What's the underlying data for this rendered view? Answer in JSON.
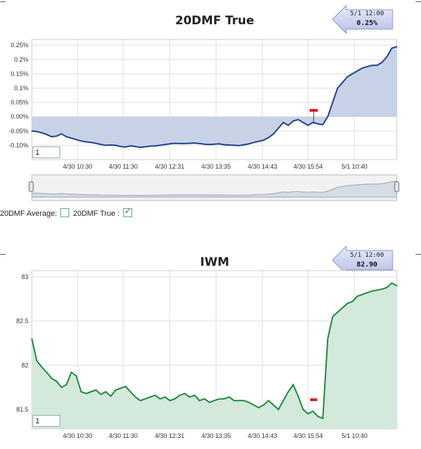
{
  "chart_data": [
    {
      "type": "area",
      "title": "20DMF True",
      "xlabel": "",
      "ylabel": "",
      "ylim": [
        -0.15,
        0.27
      ],
      "yticks": [
        "0.25%",
        "0.2%",
        "0.15%",
        "0.1%",
        "0.05%",
        "0.00%",
        "-0.05%",
        "-0.10%"
      ],
      "ytick_values": [
        0.25,
        0.2,
        0.15,
        0.1,
        0.05,
        0.0,
        -0.05,
        -0.1
      ],
      "xticks": [
        "4/30 10:30",
        "4/30 11:30",
        "4/30 12:31",
        "4/30 13:35",
        "4/30 14:43",
        "4/30 15:54",
        "5/1 10:40"
      ],
      "grid": true,
      "callout": {
        "date": "5/1 12:00",
        "value": "0.25%"
      },
      "input_value": "1",
      "series": [
        {
          "color": "#1f3f8f",
          "fill": "#c8d2e6",
          "values": [
            -0.05,
            -0.052,
            -0.056,
            -0.062,
            -0.07,
            -0.068,
            -0.06,
            -0.07,
            -0.075,
            -0.08,
            -0.085,
            -0.088,
            -0.09,
            -0.093,
            -0.097,
            -0.1,
            -0.099,
            -0.1,
            -0.104,
            -0.106,
            -0.102,
            -0.104,
            -0.107,
            -0.105,
            -0.103,
            -0.102,
            -0.1,
            -0.097,
            -0.095,
            -0.093,
            -0.094,
            -0.094,
            -0.093,
            -0.092,
            -0.094,
            -0.096,
            -0.097,
            -0.096,
            -0.095,
            -0.098,
            -0.099,
            -0.1,
            -0.101,
            -0.098,
            -0.095,
            -0.09,
            -0.086,
            -0.082,
            -0.073,
            -0.06,
            -0.04,
            -0.02,
            -0.03,
            -0.015,
            -0.01,
            -0.02,
            -0.03,
            -0.02,
            -0.025,
            -0.028,
            0.0,
            0.05,
            0.1,
            0.12,
            0.14,
            0.15,
            0.16,
            0.17,
            0.175,
            0.18,
            0.18,
            0.19,
            0.21,
            0.24,
            0.245
          ]
        }
      ]
    },
    {
      "type": "area",
      "title": "IWM",
      "xlabel": "",
      "ylabel": "",
      "ylim": [
        81.28,
        83.07
      ],
      "yticks": [
        "83",
        "82.5",
        "82",
        "81.5"
      ],
      "ytick_values": [
        83,
        82.5,
        82,
        81.5
      ],
      "xticks": [
        "4/30 10:30",
        "4/30 11:30",
        "4/30 12:31",
        "4/30 13:35",
        "4/30 14:43",
        "4/30 15:54",
        "5/1 10:40"
      ],
      "grid": true,
      "callout": {
        "date": "5/1 12:00",
        "value": "82.90"
      },
      "input_value": "1",
      "series": [
        {
          "color": "#1b8a3a",
          "fill": "#d3e9dc",
          "values": [
            82.3,
            82.05,
            81.98,
            81.92,
            81.85,
            81.82,
            81.75,
            81.78,
            81.92,
            81.88,
            81.7,
            81.68,
            81.7,
            81.72,
            81.67,
            81.7,
            81.65,
            81.72,
            81.74,
            81.76,
            81.7,
            81.64,
            81.6,
            81.62,
            81.64,
            81.66,
            81.62,
            81.64,
            81.6,
            81.62,
            81.66,
            81.68,
            81.64,
            81.66,
            81.6,
            81.62,
            81.58,
            81.6,
            81.62,
            81.62,
            81.64,
            81.6,
            81.6,
            81.6,
            81.58,
            81.55,
            81.52,
            81.55,
            81.6,
            81.55,
            81.5,
            81.6,
            81.7,
            81.78,
            81.65,
            81.5,
            81.45,
            81.48,
            81.42,
            81.4,
            82.3,
            82.55,
            82.6,
            82.65,
            82.7,
            82.72,
            82.78,
            82.8,
            82.82,
            82.84,
            82.85,
            82.86,
            82.88,
            82.93,
            82.9
          ]
        }
      ]
    }
  ],
  "legend": {
    "items": [
      {
        "label": "20DMF Average:",
        "checked": false
      },
      {
        "label": "20DMF True :",
        "checked": true
      }
    ]
  },
  "navigator": {
    "handle_left": "left-handle",
    "handle_right": "right-handle"
  }
}
